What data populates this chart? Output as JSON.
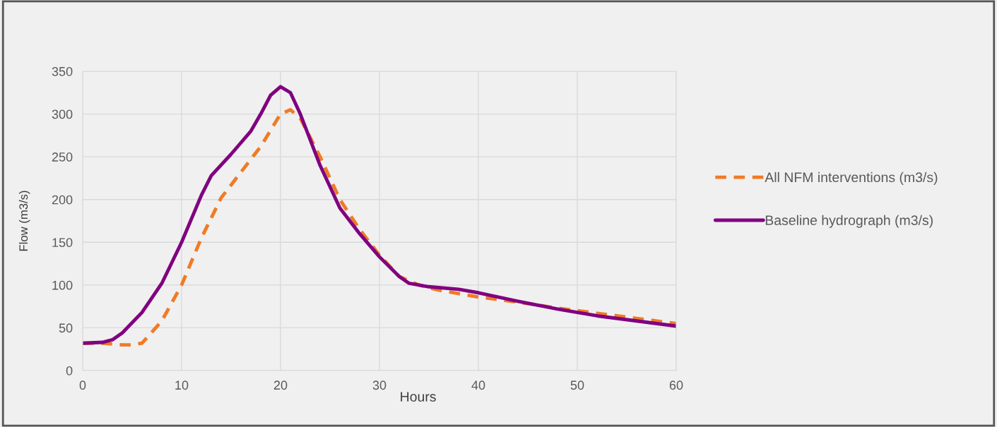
{
  "chart_data": {
    "type": "line",
    "xlabel": "Hours",
    "ylabel": "Flow (m3/s)",
    "xlim": [
      0,
      60
    ],
    "xticks": [
      0,
      10,
      20,
      30,
      40,
      50,
      60
    ],
    "ylim": [
      0,
      350
    ],
    "yticks": [
      0,
      50,
      100,
      150,
      200,
      250,
      300,
      350
    ],
    "grid": true,
    "legend": "right",
    "series": [
      {
        "name": "All NFM interventions (m3/s)",
        "color": "#f07b25",
        "line_style": "dashed",
        "x": [
          0,
          2,
          3,
          4,
          5,
          6,
          8,
          10,
          12,
          14,
          16,
          18,
          20,
          21,
          22,
          24,
          26,
          28,
          30,
          32,
          34,
          36,
          38,
          40,
          44,
          48,
          52,
          56,
          60
        ],
        "values": [
          32,
          32,
          31,
          30,
          30,
          32,
          58,
          100,
          155,
          202,
          232,
          262,
          300,
          305,
          295,
          250,
          200,
          165,
          135,
          110,
          100,
          94,
          90,
          86,
          80,
          73,
          67,
          61,
          55
        ]
      },
      {
        "name": "Baseline hydrograph (m3/s)",
        "color": "#800080",
        "line_style": "solid",
        "x": [
          0,
          2,
          3,
          4,
          6,
          8,
          10,
          12,
          13,
          15,
          17,
          18,
          19,
          20,
          21,
          22,
          24,
          26,
          28,
          30,
          32,
          33,
          35,
          38,
          40,
          44,
          48,
          52,
          56,
          60
        ],
        "values": [
          32,
          33,
          36,
          44,
          68,
          102,
          150,
          205,
          228,
          253,
          280,
          300,
          322,
          332,
          325,
          300,
          240,
          190,
          160,
          133,
          110,
          102,
          98,
          95,
          91,
          81,
          72,
          64,
          58,
          52
        ]
      }
    ]
  }
}
